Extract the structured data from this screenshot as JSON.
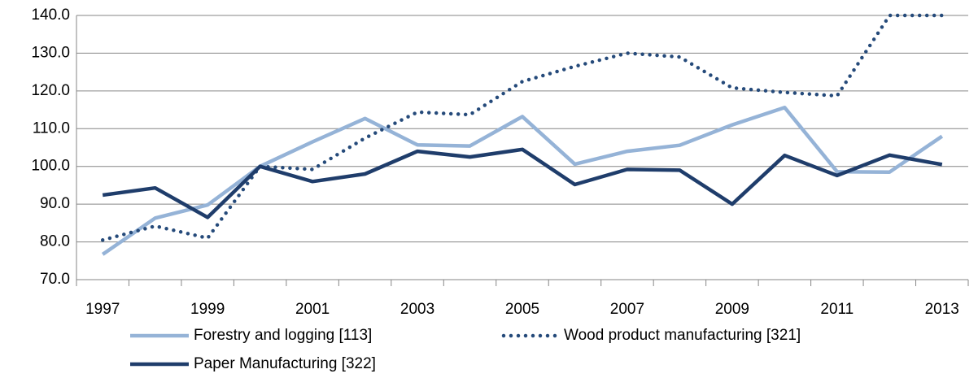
{
  "chart_data": {
    "type": "line",
    "categories": [
      "1997",
      null,
      "1999",
      null,
      "2001",
      null,
      "2003",
      null,
      "2005",
      null,
      "2007",
      null,
      "2009",
      null,
      "2011",
      null,
      "2013"
    ],
    "series": [
      {
        "name": "Forestry and logging [113]",
        "color": "#95b3d7",
        "style": "solid",
        "values": [
          76.7,
          86.3,
          89.8,
          100,
          106.5,
          112.7,
          105.7,
          105.4,
          113.2,
          100.6,
          104,
          105.6,
          111,
          115.6,
          98.6,
          98.5,
          108
        ]
      },
      {
        "name": "Wood product manufacturing [321]",
        "color": "#254a7a",
        "style": "dotted",
        "values": [
          80.5,
          84.2,
          81.0,
          100,
          99.2,
          107.5,
          114.4,
          113.7,
          122.5,
          126.5,
          130,
          129,
          120.8,
          119.6,
          118.7,
          140,
          140
        ]
      },
      {
        "name": "Paper Manufacturing [322]",
        "color": "#1f3d6b",
        "style": "solid",
        "values": [
          92.4,
          94.3,
          86.5,
          100,
          96,
          98,
          104,
          102.5,
          104.5,
          95.2,
          99.2,
          99,
          90,
          102.9,
          97.6,
          103,
          100.5
        ]
      }
    ],
    "ylim": [
      70,
      140
    ],
    "yticks": [
      {
        "value": 70,
        "label": "70.0"
      },
      {
        "value": 80,
        "label": "80.0"
      },
      {
        "value": 90,
        "label": "90.0"
      },
      {
        "value": 100,
        "label": "100.0"
      },
      {
        "value": 110,
        "label": "110.0"
      },
      {
        "value": 120,
        "label": "120.0"
      },
      {
        "value": 130,
        "label": "130.0"
      },
      {
        "value": 140,
        "label": "140.0"
      }
    ],
    "grid": true,
    "legend": "bottom"
  }
}
